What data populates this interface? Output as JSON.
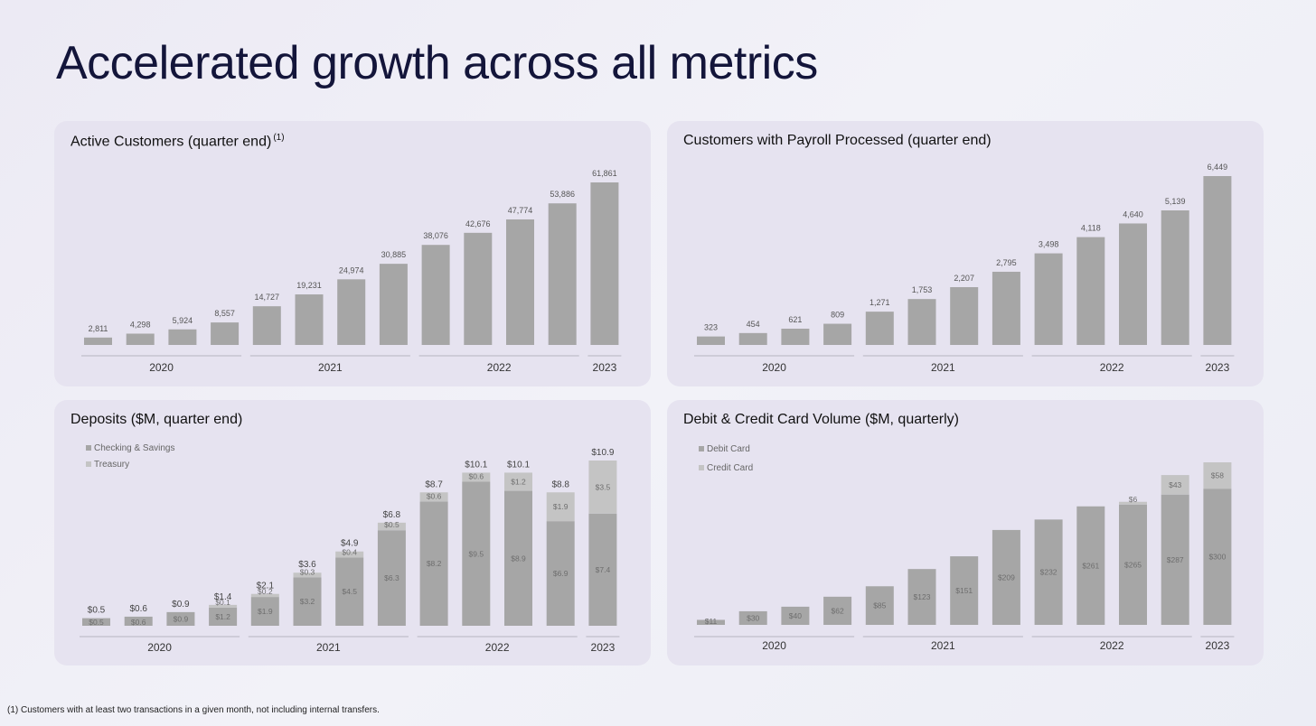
{
  "page": {
    "title": "Accelerated growth across all metrics",
    "footnote": "(1) Customers with at least two transactions in a given month, not including internal transfers."
  },
  "chart_data": [
    {
      "type": "bar",
      "title": "Active Customers (quarter end)",
      "title_sup": "(1)",
      "year_groups": [
        {
          "label": "2020",
          "count": 4
        },
        {
          "label": "2021",
          "count": 4
        },
        {
          "label": "2022",
          "count": 4
        },
        {
          "label": "2023",
          "count": 1
        }
      ],
      "series": [
        {
          "values": [
            2811,
            4298,
            5924,
            8557,
            14727,
            19231,
            24974,
            30885,
            38076,
            42676,
            47774,
            53886,
            61861
          ]
        }
      ],
      "data_labels": [
        "2,811",
        "4,298",
        "5,924",
        "8,557",
        "14,727",
        "19,231",
        "24,974",
        "30,885",
        "38,076",
        "42,676",
        "47,774",
        "53,886",
        "61,861"
      ],
      "ylim": [
        0,
        61861
      ]
    },
    {
      "type": "bar",
      "title": "Customers with Payroll Processed (quarter end)",
      "year_groups": [
        {
          "label": "2020",
          "count": 4
        },
        {
          "label": "2021",
          "count": 4
        },
        {
          "label": "2022",
          "count": 4
        },
        {
          "label": "2023",
          "count": 1
        }
      ],
      "series": [
        {
          "values": [
            323,
            454,
            621,
            809,
            1271,
            1753,
            2207,
            2795,
            3498,
            4118,
            4640,
            5139,
            6449
          ]
        }
      ],
      "data_labels": [
        "323",
        "454",
        "621",
        "809",
        "1,271",
        "1,753",
        "2,207",
        "2,795",
        "3,498",
        "4,118",
        "4,640",
        "5,139",
        "6,449"
      ],
      "ylim": [
        0,
        6449
      ]
    },
    {
      "type": "bar",
      "stacked": true,
      "title": "Deposits ($M, quarter end)",
      "legend": {
        "position": "top-left"
      },
      "year_groups": [
        {
          "label": "2020",
          "count": 4
        },
        {
          "label": "2021",
          "count": 4
        },
        {
          "label": "2022",
          "count": 4
        },
        {
          "label": "2023",
          "count": 1
        }
      ],
      "series": [
        {
          "name": "Checking & Savings",
          "color": "#a6a6a6",
          "values": [
            0.5,
            0.6,
            0.9,
            1.2,
            1.9,
            3.2,
            4.5,
            6.3,
            8.2,
            9.5,
            8.9,
            6.9,
            7.4
          ],
          "labels": [
            "$0.5",
            "$0.6",
            "$0.9",
            "$1.2",
            "$1.9",
            "$3.2",
            "$4.5",
            "$6.3",
            "$8.2",
            "$9.5",
            "$8.9",
            "$6.9",
            "$7.4"
          ]
        },
        {
          "name": "Treasury",
          "color": "#c4c4c4",
          "values": [
            0,
            0,
            0,
            0.1,
            0.2,
            0.3,
            0.4,
            0.5,
            0.6,
            0.6,
            1.2,
            1.9,
            3.5
          ],
          "labels": [
            "",
            "",
            "",
            "$0.1",
            "$0.2",
            "$0.3",
            "$0.4",
            "$0.5",
            "$0.6",
            "$0.6",
            "$1.2",
            "$1.9",
            "$3.5"
          ]
        }
      ],
      "totals": [
        0.5,
        0.6,
        0.9,
        1.4,
        2.1,
        3.6,
        4.9,
        6.8,
        8.7,
        10.1,
        10.1,
        8.8,
        10.9
      ],
      "total_labels": [
        "$0.5",
        "$0.6",
        "$0.9",
        "$1.4",
        "$2.1",
        "$3.6",
        "$4.9",
        "$6.8",
        "$8.7",
        "$10.1",
        "$10.1",
        "$8.8",
        "$10.9"
      ],
      "ylim": [
        0,
        10.9
      ]
    },
    {
      "type": "bar",
      "stacked": true,
      "title": "Debit & Credit Card Volume ($M, quarterly)",
      "legend": {
        "position": "top-left"
      },
      "year_groups": [
        {
          "label": "2020",
          "count": 4
        },
        {
          "label": "2021",
          "count": 4
        },
        {
          "label": "2022",
          "count": 4
        },
        {
          "label": "2023",
          "count": 1
        }
      ],
      "series": [
        {
          "name": "Debit Card",
          "color": "#a6a6a6",
          "values": [
            11,
            30,
            40,
            62,
            85,
            123,
            151,
            209,
            232,
            261,
            265,
            287,
            300
          ],
          "labels": [
            "$11",
            "$30",
            "$40",
            "$62",
            "$85",
            "$123",
            "$151",
            "$209",
            "$232",
            "$261",
            "$265",
            "$287",
            "$300"
          ]
        },
        {
          "name": "Credit Card",
          "color": "#c4c4c4",
          "values": [
            0,
            0,
            0,
            0,
            0,
            0,
            0,
            0,
            0,
            0,
            6,
            43,
            58
          ],
          "labels": [
            "",
            "",
            "",
            "",
            "",
            "",
            "",
            "",
            "",
            "",
            "$6",
            "$43",
            "$58"
          ]
        }
      ],
      "ylim": [
        0,
        358
      ]
    }
  ]
}
